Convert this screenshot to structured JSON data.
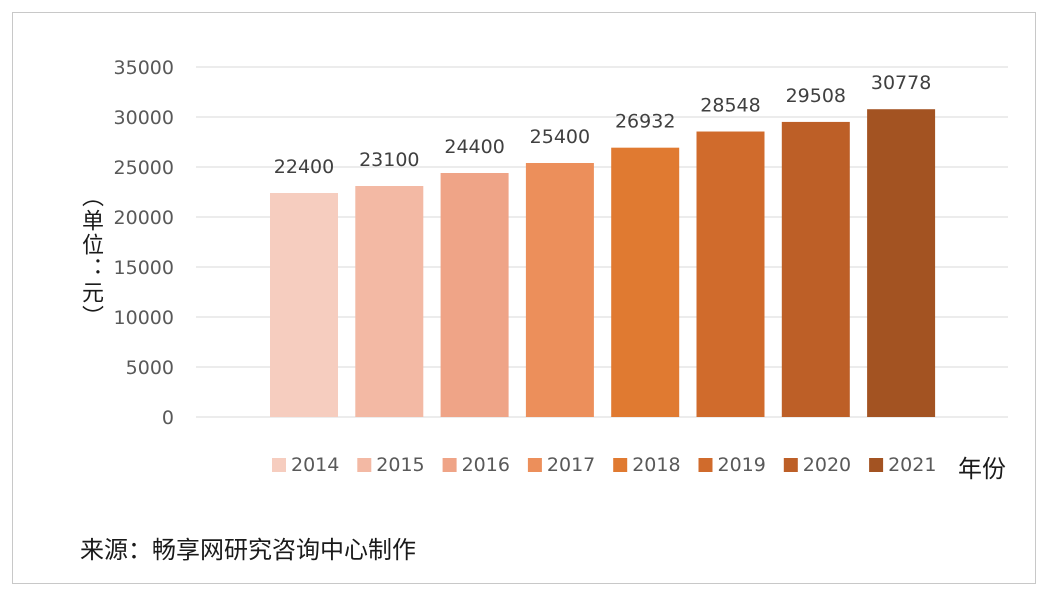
{
  "chart_data": {
    "type": "bar",
    "categories": [
      "2014",
      "2015",
      "2016",
      "2017",
      "2018",
      "2019",
      "2020",
      "2021"
    ],
    "values": [
      22400,
      23100,
      24400,
      25400,
      26932,
      28548,
      29508,
      30778
    ],
    "colors": [
      "#f6cdbf",
      "#f3b9a4",
      "#efa487",
      "#ec8f5b",
      "#e07a31",
      "#d06b2c",
      "#bd5f27",
      "#a35322"
    ],
    "ylabel": "（单位：元）",
    "xlabel": "年份",
    "ylim": [
      0,
      35000
    ],
    "yticks": [
      "0",
      "5000",
      "10000",
      "15000",
      "20000",
      "25000",
      "30000",
      "35000"
    ],
    "grid": true,
    "legend": "bottom",
    "data_labels": [
      "22400",
      "23100",
      "24400",
      "25400",
      "26932",
      "28548",
      "29508",
      "30778"
    ]
  },
  "footer": {
    "source": "来源：畅享网研究咨询中心制作"
  }
}
